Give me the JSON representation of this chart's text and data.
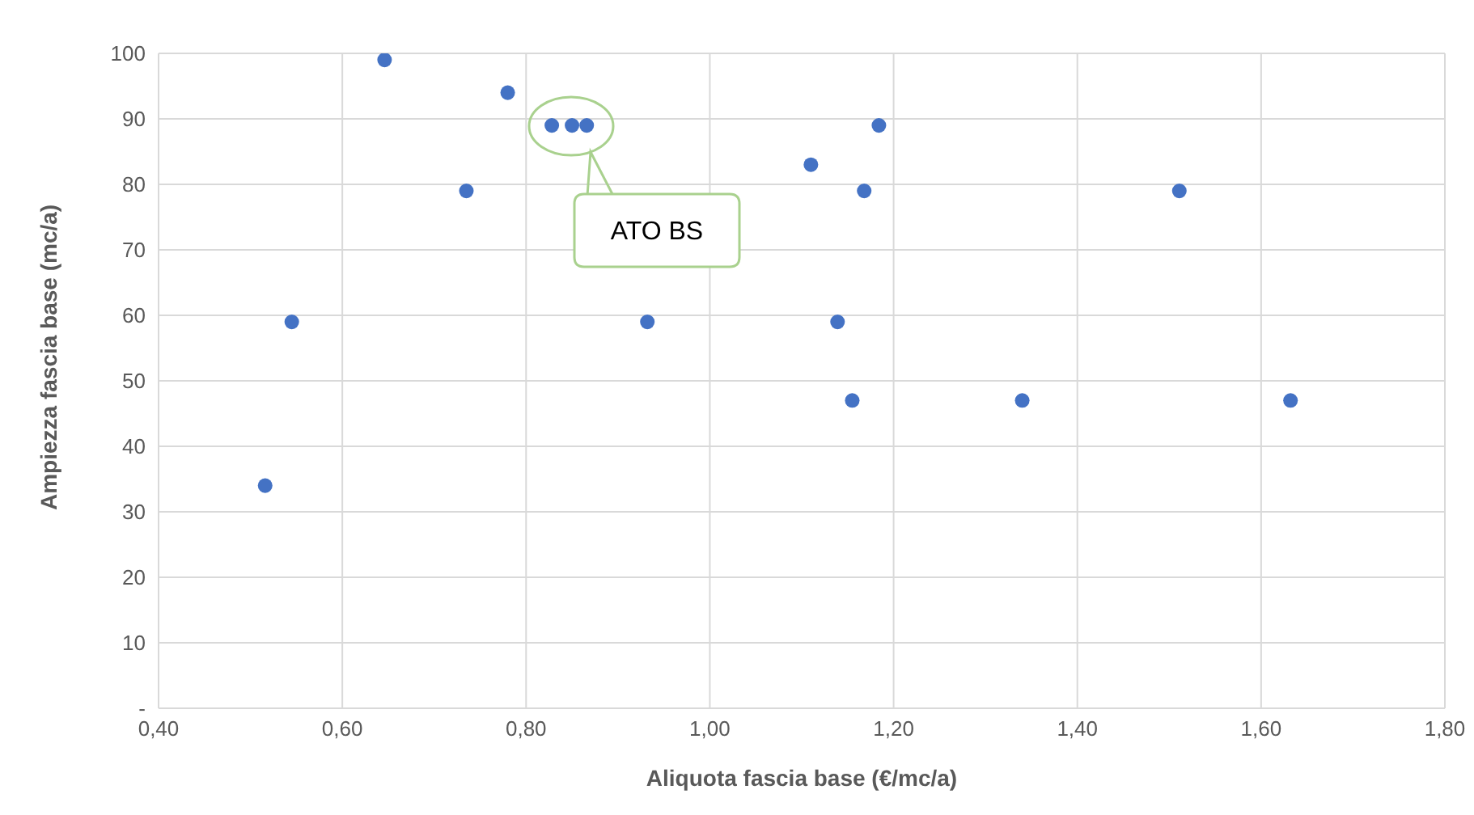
{
  "chart_data": {
    "type": "scatter",
    "xlabel": "Aliquota fascia base (€/mc/a)",
    "ylabel": "Ampiezza fascia base (mc/a)",
    "x": [
      0.516,
      0.545,
      0.646,
      0.735,
      0.78,
      0.828,
      0.85,
      0.866,
      0.932,
      1.11,
      1.139,
      1.155,
      1.168,
      1.184,
      1.34,
      1.511,
      1.632
    ],
    "series": [
      {
        "color": "#4472c4",
        "values": [
          34,
          59,
          99,
          79,
          94,
          89,
          89,
          89,
          59,
          83,
          59,
          47,
          79,
          89,
          47,
          79,
          47
        ]
      }
    ],
    "xlim": [
      0.4,
      1.8
    ],
    "xticks": [
      {
        "value": 0.4,
        "label": "0,40"
      },
      {
        "value": 0.6,
        "label": "0,60"
      },
      {
        "value": 0.8,
        "label": "0,80"
      },
      {
        "value": 1.0,
        "label": "1,00"
      },
      {
        "value": 1.2,
        "label": "1,20"
      },
      {
        "value": 1.4,
        "label": "1,40"
      },
      {
        "value": 1.6,
        "label": "1,60"
      },
      {
        "value": 1.8,
        "label": "1,80"
      }
    ],
    "ylim": [
      0,
      100
    ],
    "yticks": [
      {
        "value": 0,
        "label": "-"
      },
      10,
      20,
      30,
      40,
      50,
      60,
      70,
      80,
      90,
      100
    ],
    "grid": true,
    "marker": "circle",
    "annotations": [
      "ATO BS"
    ]
  }
}
